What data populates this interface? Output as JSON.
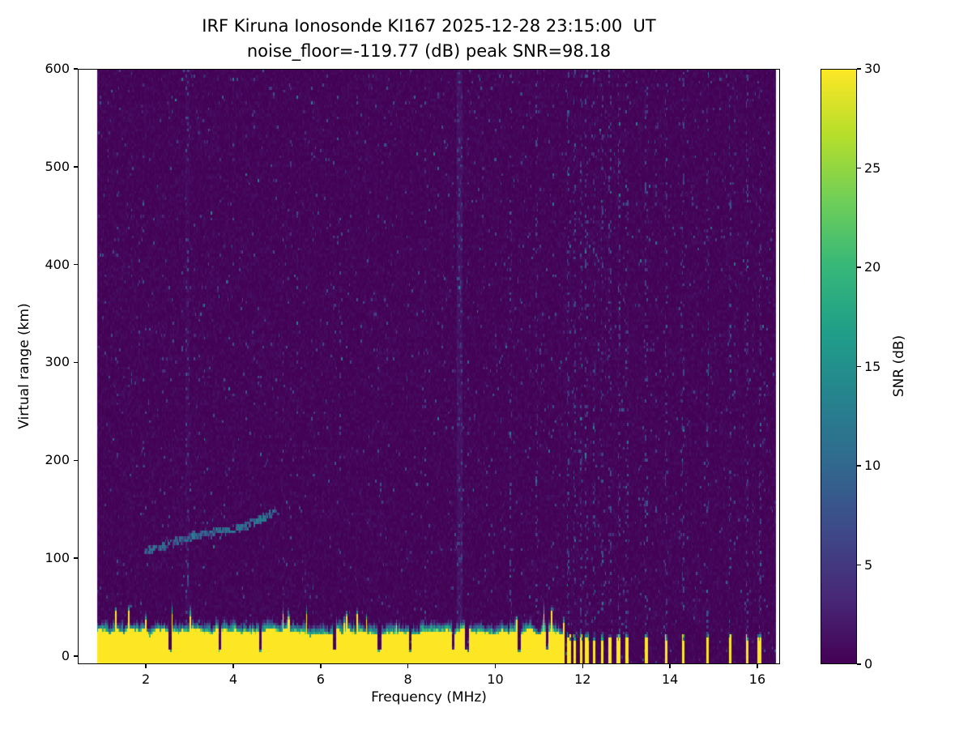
{
  "chart_data": {
    "type": "heatmap",
    "title": "IRF Kiruna Ionosonde KI167 2025-12-28 23:15:00  UT",
    "subtitle": "noise_floor=-119.77 (dB) peak SNR=98.18",
    "station": "IRF Kiruna Ionosonde KI167",
    "timestamp_ut": "2025-12-28 23:15:00",
    "noise_floor_db": -119.77,
    "peak_snr_db": 98.18,
    "xlabel": "Frequency (MHz)",
    "ylabel": "Virtual range (km)",
    "colorbar_label": "SNR (dB)",
    "xlim": [
      0.44,
      16.52
    ],
    "ylim": [
      -8.3,
      600
    ],
    "x_ticks": [
      2,
      4,
      6,
      8,
      10,
      12,
      14,
      16
    ],
    "y_ticks": [
      0,
      100,
      200,
      300,
      400,
      500,
      600
    ],
    "colorbar_ticks": [
      0,
      5,
      10,
      15,
      20,
      25,
      30
    ],
    "colorbar_range": [
      0,
      30
    ],
    "colormap": "viridis",
    "data_freq_range": [
      0.88,
      16.42
    ],
    "viridis_stops": [
      "#440154",
      "#482878",
      "#3e4989",
      "#31688e",
      "#26828e",
      "#1f9e89",
      "#35b779",
      "#6ece58",
      "#b5de2b",
      "#fde725"
    ],
    "features": {
      "background_noise_snr_db": [
        0,
        2
      ],
      "ground_clutter": {
        "description": "saturated yellow ground-clutter band with ragged teal upper fringe",
        "freq_range_mhz": [
          0.88,
          11.58
        ],
        "range_km": [
          -8,
          32
        ],
        "snr_db": 30
      },
      "stepped_clutter_bars_mhz": [
        11.68,
        11.82,
        11.96,
        12.1,
        12.26,
        12.44,
        12.62,
        12.82,
        13.02,
        13.47,
        13.9,
        14.3,
        14.87,
        15.37,
        15.76,
        16.05
      ],
      "clutter_notches_mhz": [
        2.55,
        3.68,
        4.62,
        6.32,
        7.35,
        8.05,
        9.03,
        9.35,
        10.55,
        11.2
      ],
      "echo_trace": {
        "description": "faint teal E-region echo trace rising with frequency",
        "points_mhz_km": [
          [
            1.95,
            107
          ],
          [
            2.4,
            113
          ],
          [
            2.85,
            119
          ],
          [
            3.2,
            124
          ],
          [
            3.55,
            126
          ],
          [
            3.9,
            128
          ],
          [
            4.25,
            132
          ],
          [
            4.6,
            139
          ],
          [
            5.0,
            149
          ]
        ]
      },
      "interference_streaks_mhz": [
        2.95,
        9.2,
        10.35,
        10.95
      ]
    }
  }
}
